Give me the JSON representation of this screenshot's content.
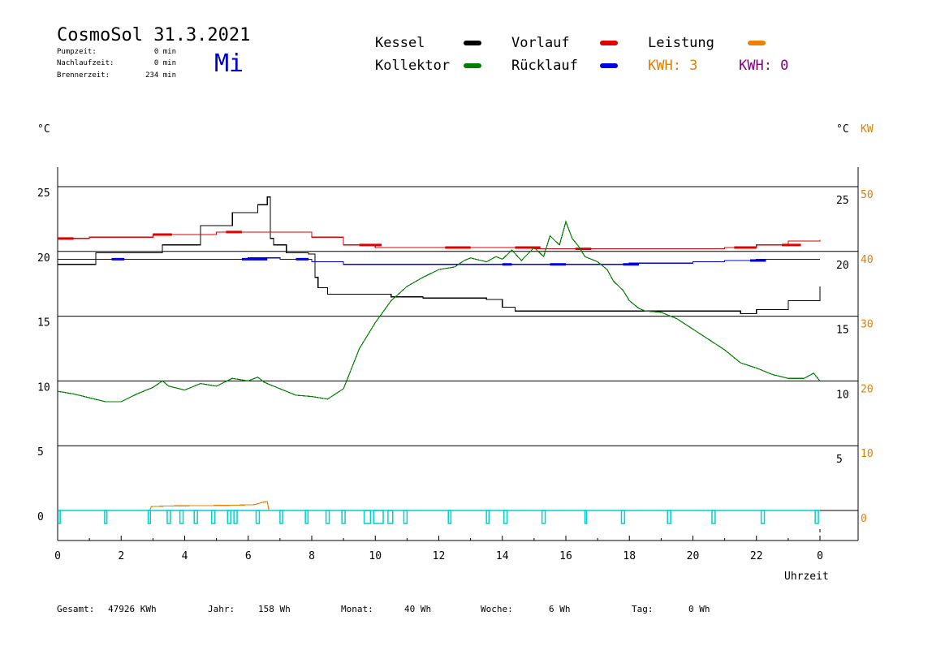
{
  "header": {
    "title": "CosmoSol 31.3.2021",
    "weekday": "Mi",
    "stats": [
      {
        "label": "Pumpzeit:",
        "value": "0 min"
      },
      {
        "label": "Nachlaufzeit:",
        "value": "0 min"
      },
      {
        "label": "Brennerzeit:",
        "value": "234 min"
      }
    ]
  },
  "legend": {
    "items": [
      {
        "label": "Kessel",
        "color": "#000000"
      },
      {
        "label": "Kollektor",
        "color": "#008000"
      },
      {
        "label": "Vorlauf",
        "color": "#e00000"
      },
      {
        "label": "Rücklauf",
        "color": "#0000e0"
      },
      {
        "label": "Leistung",
        "color": "#f08000"
      }
    ],
    "kwh": [
      {
        "label": "KWH: 3",
        "color": "#e08000"
      },
      {
        "label": "KWH: 0",
        "color": "#800080"
      }
    ]
  },
  "axes": {
    "left_unit": "°C",
    "right_unit": "°C",
    "right_unit2": "KW",
    "xlabel": "Uhrzeit",
    "x_tick_labels": [
      "0",
      "2",
      "4",
      "6",
      "8",
      "10",
      "12",
      "14",
      "16",
      "18",
      "20",
      "22",
      "0"
    ],
    "left_ticks": [
      "25",
      "20",
      "15",
      "10",
      "5",
      "0"
    ],
    "right_ticks": [
      "25",
      "20",
      "15",
      "10",
      "5"
    ],
    "kw_ticks": [
      "50",
      "40",
      "30",
      "20",
      "10",
      "0"
    ]
  },
  "footer": [
    {
      "label": "Gesamt:",
      "value": "47926 KWh"
    },
    {
      "label": "Jahr:",
      "value": "158 Wh"
    },
    {
      "label": "Monat:",
      "value": "40 Wh"
    },
    {
      "label": "Woche:",
      "value": "6 Wh"
    },
    {
      "label": "Tag:",
      "value": "0 Wh"
    }
  ],
  "chart_data": {
    "type": "line",
    "xlabel": "Uhrzeit",
    "ylabel": "°C",
    "xlim": [
      0,
      24
    ],
    "ylim": [
      -2,
      27
    ],
    "y2lim": [
      -4,
      54
    ],
    "grid": true,
    "series": [
      {
        "name": "Kessel",
        "color": "#000000",
        "step": true,
        "x": [
          0,
          1.2,
          2.6,
          3.3,
          4.5,
          5.5,
          6.3,
          6.6,
          6.7,
          6.8,
          7.2,
          7.9,
          8.1,
          8.2,
          8.5,
          9.0,
          10.5,
          11.5,
          13.5,
          14.0,
          14.4,
          15.5,
          17.0,
          19.0,
          21.5,
          22.0,
          23.0,
          24.0
        ],
        "y": [
          19.0,
          19.9,
          19.9,
          20.5,
          22.0,
          23.0,
          23.6,
          24.2,
          21.0,
          20.5,
          19.9,
          19.8,
          18.0,
          17.2,
          16.7,
          16.7,
          16.5,
          16.4,
          16.3,
          15.7,
          15.4,
          15.4,
          15.4,
          15.4,
          15.2,
          15.5,
          16.2,
          17.3
        ]
      },
      {
        "name": "Vorlauf",
        "color": "#e00000",
        "step": true,
        "x": [
          0,
          1,
          3,
          5,
          6.8,
          8,
          9,
          10,
          11,
          13,
          15,
          17,
          19,
          21,
          22,
          23,
          24
        ],
        "y": [
          21.0,
          21.1,
          21.3,
          21.5,
          21.5,
          21.1,
          20.5,
          20.3,
          20.3,
          20.3,
          20.2,
          20.2,
          20.2,
          20.3,
          20.5,
          20.8,
          20.9
        ],
        "bold_marks": [
          [
            0,
            0.5
          ],
          [
            3,
            3.6
          ],
          [
            5.3,
            5.8
          ],
          [
            9.5,
            10.2
          ],
          [
            12.2,
            13
          ],
          [
            14.4,
            15.2
          ],
          [
            16.3,
            16.8
          ],
          [
            21.3,
            22
          ],
          [
            22.8,
            23.4
          ]
        ]
      },
      {
        "name": "Rücklauf",
        "color": "#0000e0",
        "step": true,
        "x": [
          0,
          1.5,
          3,
          5,
          6,
          7,
          8,
          9,
          10,
          12,
          14,
          16,
          18,
          20,
          21,
          22,
          23,
          24
        ],
        "y": [
          19.4,
          19.4,
          19.4,
          19.4,
          19.5,
          19.4,
          19.2,
          19.0,
          19.0,
          19.0,
          19.0,
          19.0,
          19.1,
          19.2,
          19.3,
          19.4,
          19.4,
          19.4
        ],
        "bold_marks": [
          [
            1.7,
            2.1
          ],
          [
            5.8,
            6.6
          ],
          [
            7.5,
            7.9
          ],
          [
            14,
            14.3
          ],
          [
            15.5,
            16
          ],
          [
            17.8,
            18.3
          ],
          [
            21.8,
            22.3
          ]
        ]
      },
      {
        "name": "Kollektor",
        "color": "#008000",
        "x": [
          0,
          0.5,
          1,
          1.5,
          2,
          2.5,
          3,
          3.3,
          3.5,
          4,
          4.5,
          5,
          5.5,
          6,
          6.3,
          6.5,
          7,
          7.5,
          8,
          8.5,
          9,
          9.5,
          10,
          10.5,
          11,
          11.5,
          12,
          12.5,
          12.8,
          13,
          13.5,
          13.8,
          14,
          14.3,
          14.6,
          15,
          15.3,
          15.5,
          15.8,
          16,
          16.2,
          16.4,
          16.6,
          16.8,
          17,
          17.3,
          17.5,
          17.8,
          18,
          18.3,
          18.5,
          19,
          19.5,
          20,
          20.5,
          21,
          21.5,
          22,
          22.5,
          23,
          23.5,
          23.8,
          24
        ],
        "y": [
          9.2,
          9.0,
          8.7,
          8.4,
          8.4,
          9.0,
          9.5,
          10.0,
          9.6,
          9.3,
          9.8,
          9.6,
          10.2,
          10.0,
          10.3,
          9.9,
          9.4,
          8.9,
          8.8,
          8.6,
          9.4,
          12.5,
          14.5,
          16.2,
          17.3,
          18.0,
          18.6,
          18.8,
          19.3,
          19.5,
          19.2,
          19.6,
          19.4,
          20.1,
          19.3,
          20.3,
          19.6,
          21.2,
          20.5,
          22.3,
          21.0,
          20.4,
          19.6,
          19.4,
          19.2,
          18.6,
          17.7,
          17.0,
          16.2,
          15.6,
          15.4,
          15.3,
          14.8,
          14.0,
          13.2,
          12.4,
          11.4,
          11.0,
          10.5,
          10.2,
          10.2,
          10.6,
          10.0
        ]
      },
      {
        "name": "Leistung",
        "color": "#f08000",
        "axis": "kw",
        "x": [
          0,
          2.9,
          2.95,
          3.5,
          5.5,
          6.2,
          6.4,
          6.6,
          6.65
        ],
        "y": [
          0,
          0,
          0.6,
          0.7,
          0.8,
          0.9,
          1.2,
          1.4,
          0
        ]
      },
      {
        "name": "Pumpe",
        "color": "#00d0d0",
        "type": "pulses",
        "intervals": [
          [
            0.02,
            0.08
          ],
          [
            1.48,
            1.55
          ],
          [
            2.85,
            2.92
          ],
          [
            3.45,
            3.55
          ],
          [
            3.85,
            3.95
          ],
          [
            4.3,
            4.4
          ],
          [
            4.85,
            4.95
          ],
          [
            5.35,
            5.45
          ],
          [
            5.55,
            5.65
          ],
          [
            6.25,
            6.35
          ],
          [
            7.0,
            7.08
          ],
          [
            7.8,
            7.88
          ],
          [
            8.45,
            8.55
          ],
          [
            8.95,
            9.05
          ],
          [
            9.65,
            9.85
          ],
          [
            9.95,
            10.25
          ],
          [
            10.4,
            10.55
          ],
          [
            10.9,
            11.0
          ],
          [
            12.3,
            12.38
          ],
          [
            13.5,
            13.58
          ],
          [
            14.05,
            14.15
          ],
          [
            15.25,
            15.35
          ],
          [
            16.6,
            16.65
          ],
          [
            17.75,
            17.85
          ],
          [
            19.2,
            19.3
          ],
          [
            20.6,
            20.7
          ],
          [
            22.15,
            22.25
          ],
          [
            23.85,
            23.95
          ]
        ]
      }
    ]
  }
}
